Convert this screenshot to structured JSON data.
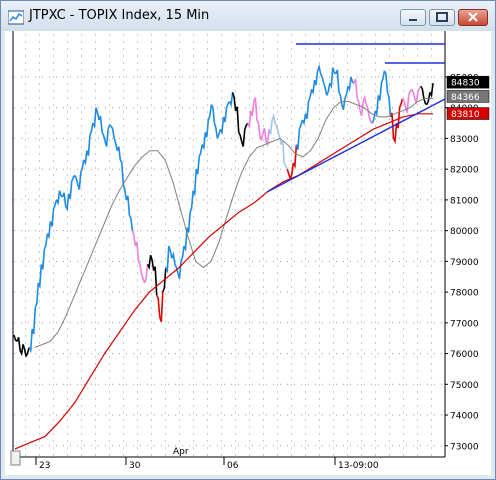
{
  "window": {
    "title": "JTPXC - TOPIX Index, 15 Min"
  },
  "chart": {
    "y_ticks": [
      "85000",
      "84000",
      "83000",
      "82000",
      "81000",
      "80000",
      "79000",
      "78000",
      "77000",
      "76000",
      "75000",
      "74000",
      "73000"
    ],
    "y_tick_values": [
      85000,
      84000,
      83000,
      82000,
      81000,
      80000,
      79000,
      78000,
      77000,
      76000,
      75000,
      74000,
      73000
    ],
    "price_label": "84830",
    "sma_label": "84366",
    "ema_label": "83810",
    "x_labels": [
      {
        "text": "23"
      },
      {
        "text": "30"
      },
      {
        "text": "Apr"
      },
      {
        "text": "06"
      },
      {
        "text": "13-09:00"
      }
    ]
  },
  "colors": {
    "uptrend": "#1e8ae6",
    "downtrend": "#000000",
    "pink": "#f080e0",
    "light_blue": "#a0c8e6",
    "red_bars": "#e00000",
    "ema": "#d40000",
    "sma": "#808080",
    "trendline": "#2030e0"
  },
  "chart_data": {
    "type": "line",
    "title": "JTPXC - TOPIX Index, 15 Min",
    "ylim": [
      72700,
      86300
    ],
    "y_ticks": [
      85000,
      84000,
      83000,
      82000,
      81000,
      80000,
      79000,
      78000,
      77000,
      76000,
      75000,
      74000,
      73000
    ],
    "x_labels": [
      "23",
      "30",
      "Apr",
      "06",
      "13-09:00"
    ],
    "series": [
      {
        "values": [
          76600,
          76400,
          76100,
          76300,
          75900,
          76200,
          76800,
          77500,
          78300,
          78900,
          79400,
          79900,
          80300,
          80700,
          81000,
          81300,
          81100,
          80800,
          81200,
          81600,
          81800,
          81500,
          81900,
          82300,
          82600,
          83100,
          83500,
          84000,
          83600,
          83200,
          82900,
          83300,
          83400,
          83000,
          82600,
          82300,
          81500,
          81000,
          80500,
          80000,
          79500,
          79000,
          78600,
          78300,
          78900,
          79200,
          78700,
          77900,
          77200,
          78000,
          78800,
          79500,
          79100,
          78900,
          78600,
          79000,
          79500,
          80100,
          80600,
          81300,
          82000,
          82400,
          82800,
          83200,
          83600,
          84100,
          83500,
          83000,
          83300,
          83700,
          84000,
          84200,
          84500,
          83900,
          83200,
          82900,
          83300,
          83500,
          83900,
          84200,
          83600,
          83100,
          83200,
          82900,
          83300,
          83600,
          83500,
          83200,
          82800,
          82200,
          82000,
          81700,
          82200,
          82800,
          83300,
          83600,
          83800,
          84200,
          84600,
          84900,
          85200,
          85100,
          84800,
          84400,
          84800,
          85300,
          85100,
          84500,
          84100,
          84300,
          84700,
          85000,
          84800,
          84300,
          83900,
          84200,
          84100,
          83700,
          83500,
          83900,
          84400,
          84800,
          85200,
          84500,
          83700,
          83000,
          83500,
          84000,
          84300,
          84000,
          84400,
          84600,
          84300,
          84500,
          84700,
          84300,
          84100,
          84500,
          84800
        ]
      },
      {
        "values": [
          76200,
          76300,
          76400,
          76700,
          77200,
          77800,
          78400,
          79000,
          79600,
          80200,
          80800,
          81300,
          81700,
          82100,
          82400,
          82600,
          82600,
          82300,
          81600,
          80700,
          79800,
          79000,
          78800,
          79000,
          79600,
          80400,
          81200,
          81900,
          82400,
          82700,
          82800,
          82900,
          83000,
          82800,
          82500,
          82400,
          82600,
          83000,
          83600,
          84000,
          84200,
          84200,
          84100,
          84000,
          83800,
          83700,
          83700,
          83800,
          83900,
          84000,
          84200,
          84300,
          84300
        ]
      },
      {
        "values": [
          72900,
          73100,
          73300,
          73800,
          74400,
          75200,
          76000,
          76700,
          77400,
          78000,
          78400,
          78800,
          79300,
          79800,
          80200,
          80600,
          80900,
          81300,
          81600,
          81800,
          82100,
          82400,
          82700,
          83000,
          83300,
          83500,
          83700,
          83800,
          83800
        ]
      }
    ]
  }
}
